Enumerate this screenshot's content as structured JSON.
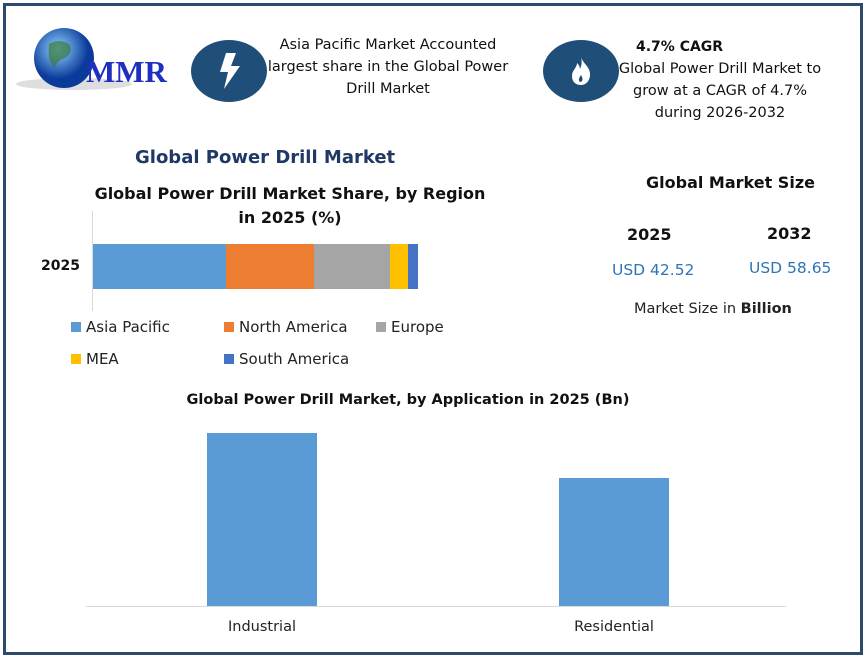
{
  "logo": {
    "text": "MMR"
  },
  "header": {
    "highlight1": {
      "icon": "lightning-icon",
      "lines": [
        "Asia Pacific Market Accounted",
        "largest share in the Global Power",
        "Drill Market"
      ]
    },
    "highlight2": {
      "icon": "flame-icon",
      "title": "4.7% CAGR",
      "lines": [
        "Global Power Drill Market to",
        "grow at a CAGR of 4.7%",
        "during 2026-2032"
      ]
    }
  },
  "main_title": "Global Power Drill Market",
  "market_size": {
    "title": "Global Market Size",
    "years": [
      "2025",
      "2032"
    ],
    "values": [
      "USD 42.52",
      "USD 58.65"
    ],
    "note_prefix": "Market Size in ",
    "note_bold": "Billion"
  },
  "colors": {
    "asia_pacific": "#5b9bd5",
    "north_america": "#ed7d31",
    "europe": "#a5a5a5",
    "mea": "#ffc000",
    "south_america": "#4472c4",
    "frame": "#2d4a6b"
  },
  "chart_data": [
    {
      "type": "bar",
      "orientation": "horizontal-stacked",
      "title_lines": [
        "Global Power Drill Market Share, by Region",
        "in 2025 (%)"
      ],
      "categories": [
        "2025"
      ],
      "series": [
        {
          "name": "Asia Pacific",
          "values": [
            41
          ]
        },
        {
          "name": "North America",
          "values": [
            27
          ]
        },
        {
          "name": "Europe",
          "values": [
            23.5
          ]
        },
        {
          "name": "MEA",
          "values": [
            5.5
          ]
        },
        {
          "name": "South America",
          "values": [
            3
          ]
        }
      ],
      "xlim": [
        0,
        100
      ],
      "legend": "bottom"
    },
    {
      "type": "bar",
      "title": "Global Power Drill Market, by Application in 2025 (Bn)",
      "categories": [
        "Industrial",
        "Residential"
      ],
      "values": [
        24.4,
        18.1
      ],
      "ylim": [
        0,
        26
      ],
      "grid": false
    }
  ]
}
